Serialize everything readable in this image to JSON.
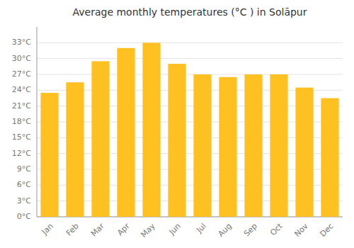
{
  "chart_data": {
    "type": "bar",
    "title": "Average monthly temperatures (°C ) in Solāpur",
    "categories": [
      "Jan",
      "Feb",
      "Mar",
      "Apr",
      "May",
      "Jun",
      "Jul",
      "Aug",
      "Sep",
      "Oct",
      "Nov",
      "Dec"
    ],
    "values": [
      23.5,
      25.5,
      29.5,
      32.0,
      33.0,
      29.0,
      27.0,
      26.5,
      27.0,
      27.0,
      24.5,
      22.5
    ],
    "color": "#FFC022",
    "ylim": [
      0,
      36
    ],
    "yticks": [
      {
        "value": 0,
        "label": "0°C"
      },
      {
        "value": 3,
        "label": "3°C"
      },
      {
        "value": 6,
        "label": "6°C"
      },
      {
        "value": 9,
        "label": "9°C"
      },
      {
        "value": 12,
        "label": "12°C"
      },
      {
        "value": 15,
        "label": "15°C"
      },
      {
        "value": 18,
        "label": "18°C"
      },
      {
        "value": 21,
        "label": "21°C"
      },
      {
        "value": 24,
        "label": "24°C"
      },
      {
        "value": 27,
        "label": "27°C"
      },
      {
        "value": 30,
        "label": "30°C"
      },
      {
        "value": 33,
        "label": "33°C"
      }
    ],
    "grid": true
  }
}
